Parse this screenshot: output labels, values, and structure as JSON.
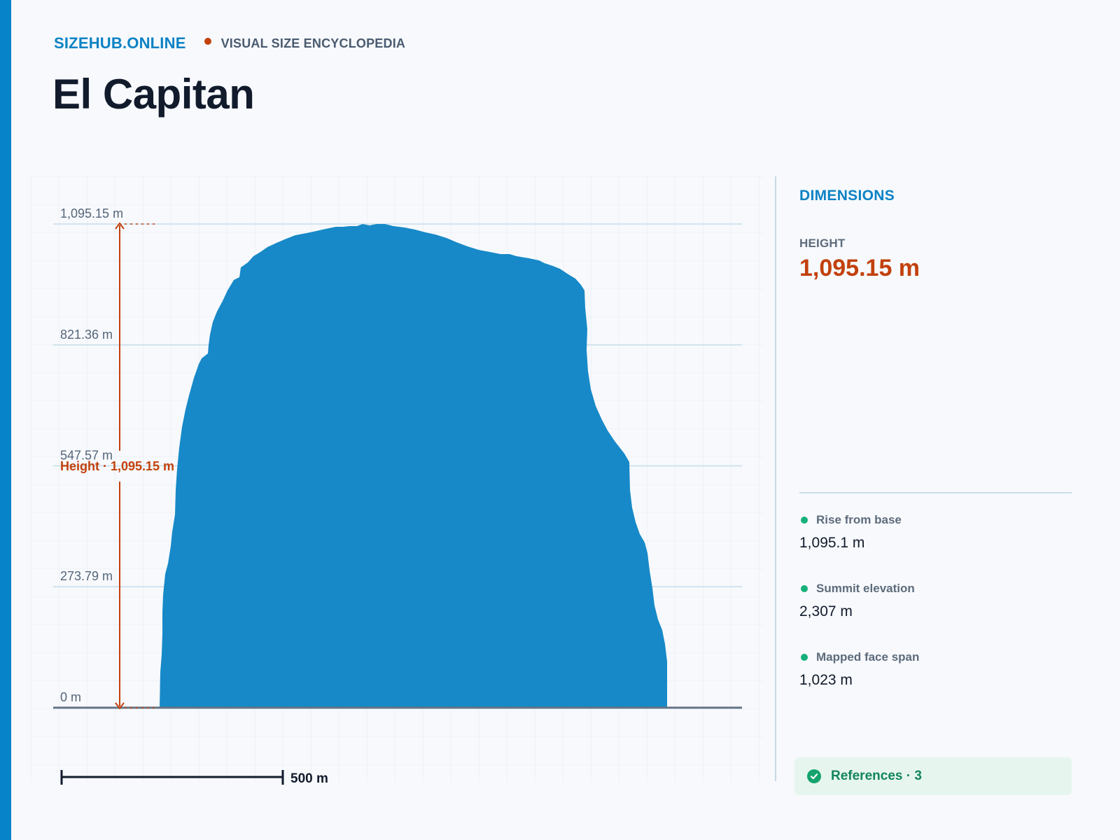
{
  "header": {
    "brand": "SIZEHUB.ONLINE",
    "tagline": "VISUAL SIZE ENCYCLOPEDIA",
    "title": "El Capitan"
  },
  "diagram": {
    "ticks": [
      {
        "value": 0,
        "label": "0 m"
      },
      {
        "value": 273.79,
        "label": "273.79 m"
      },
      {
        "value": 547.57,
        "label": "547.57 m"
      },
      {
        "value": 821.36,
        "label": "821.36 m"
      },
      {
        "value": 1095.15,
        "label": "1,095.15 m"
      }
    ],
    "height_annotation": "Height · 1,095.15 m",
    "scale_bar_label": "500 m",
    "colors": {
      "shape": "#1789c8",
      "annotation": "#c2410c",
      "grid": "#c7dcea"
    }
  },
  "panel": {
    "title": "DIMENSIONS",
    "height_label": "HEIGHT",
    "height_value": "1,095.15 m",
    "stats": [
      {
        "label": "Rise from base",
        "value": "1,095.1 m"
      },
      {
        "label": "Summit elevation",
        "value": "2,307 m"
      },
      {
        "label": "Mapped face span",
        "value": "1,023 m"
      }
    ],
    "references_label": "References · 3"
  }
}
